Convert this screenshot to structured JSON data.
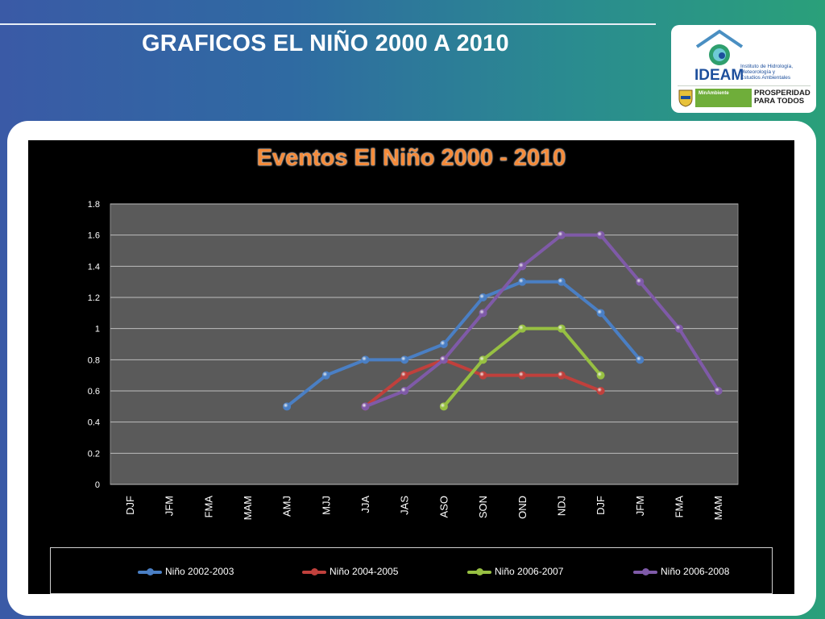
{
  "slide": {
    "title": "GRAFICOS EL NIÑO 2000 A 2010"
  },
  "logo": {
    "ideam": "IDEAM",
    "institute_lines": [
      "Instituto de Hidrología,",
      "Meteorología y",
      "Estudios Ambientales"
    ],
    "ministry": "MinAmbiente",
    "prosperity_lines": [
      "PROSPERIDAD",
      "PARA TODOS"
    ]
  },
  "chart_data": {
    "type": "line",
    "title": "Eventos El Niño 2000 - 2010",
    "xlabel": "",
    "ylabel": "",
    "ylim": [
      0,
      1.8
    ],
    "yticks": [
      "0",
      "0.2",
      "0.4",
      "0.6",
      "0.8",
      "1",
      "1.2",
      "1.4",
      "1.6",
      "1.8"
    ],
    "categories": [
      "DJF",
      "JFM",
      "FMA",
      "MAM",
      "AMJ",
      "MJJ",
      "JJA",
      "JAS",
      "ASO",
      "SON",
      "OND",
      "NDJ",
      "DJF",
      "JFM",
      "FMA",
      "MAM"
    ],
    "grid": true,
    "legend_position": "bottom",
    "series": [
      {
        "name": "Niño 2002-2003",
        "color": "#4a7fc4",
        "values": [
          null,
          null,
          null,
          null,
          0.5,
          0.7,
          0.8,
          0.8,
          0.9,
          1.2,
          1.3,
          1.3,
          1.1,
          0.8,
          null,
          null
        ]
      },
      {
        "name": "Niño 2004-2005",
        "color": "#c0403c",
        "values": [
          null,
          null,
          null,
          null,
          null,
          null,
          0.5,
          0.7,
          0.8,
          0.7,
          0.7,
          0.7,
          0.6,
          null,
          null,
          null
        ]
      },
      {
        "name": "Niño 2006-2007",
        "color": "#97c042",
        "values": [
          null,
          null,
          null,
          null,
          null,
          null,
          null,
          null,
          0.5,
          0.8,
          1.0,
          1.0,
          0.7,
          null,
          null,
          null
        ]
      },
      {
        "name": "Niño 2006-2008",
        "color": "#7f5aa8",
        "values": [
          null,
          null,
          null,
          null,
          null,
          null,
          0.5,
          0.6,
          0.8,
          1.1,
          1.4,
          1.6,
          1.6,
          1.3,
          1.0,
          0.6
        ]
      }
    ]
  }
}
